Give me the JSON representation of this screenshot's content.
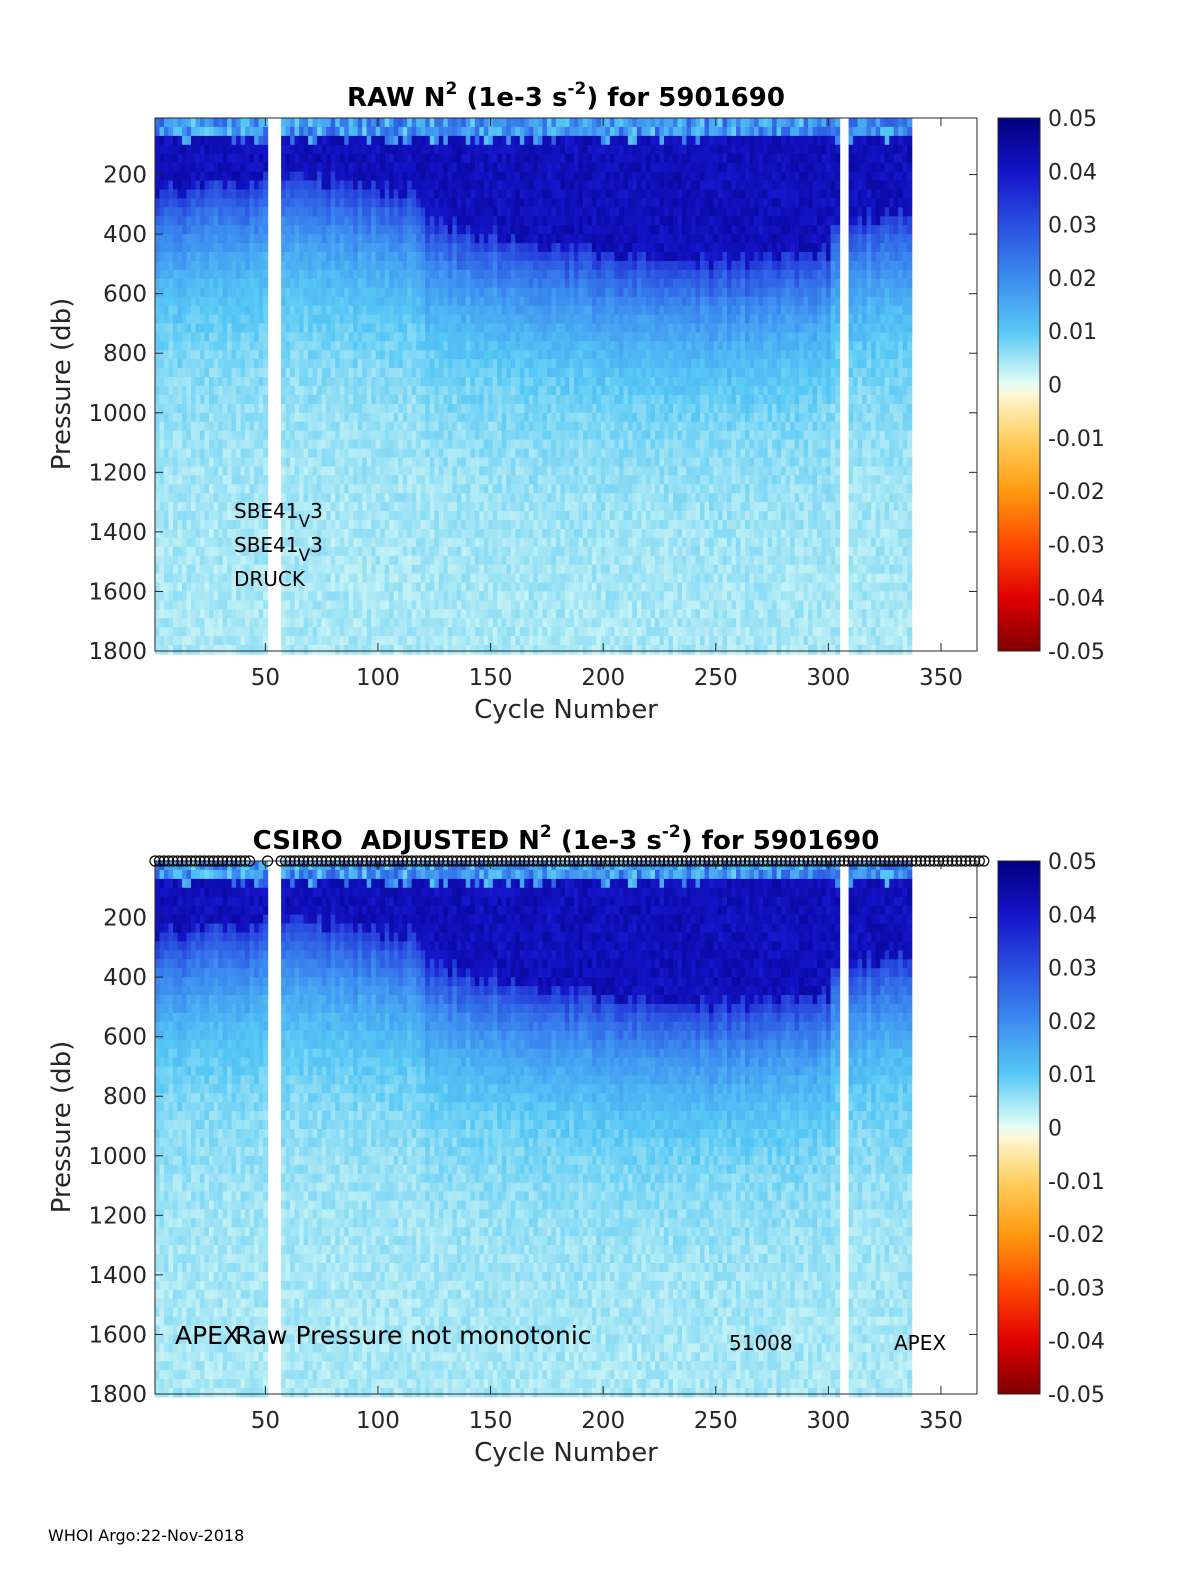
{
  "footer": "WHOI Argo:22-Nov-2018",
  "colorbar": {
    "ticks": [
      "0.05",
      "0.04",
      "0.03",
      "0.02",
      "0.01",
      "0",
      "-0.01",
      "-0.02",
      "-0.03",
      "-0.04",
      "-0.05"
    ]
  },
  "chart_data": [
    {
      "type": "heatmap",
      "title": "RAW N2 (1e-3 s-2) for 5901690",
      "title_parts": {
        "a": "RAW N",
        "sup1": "2",
        "b": " (1e-3 s",
        "sup2": "-2",
        "c": ") for 5901690"
      },
      "xlabel": "Cycle Number",
      "ylabel": "Pressure (db)",
      "xlim": [
        1,
        366
      ],
      "ylim": [
        1800,
        10
      ],
      "xticks": [
        "50",
        "100",
        "150",
        "200",
        "250",
        "300",
        "350"
      ],
      "yticks": [
        "200",
        "400",
        "600",
        "800",
        "1000",
        "1200",
        "1400",
        "1600",
        "1800"
      ],
      "clim": [
        -0.05,
        0.05
      ],
      "data_cycles": [
        1,
        336
      ],
      "gaps": [
        [
          51,
          56
        ],
        [
          305,
          307
        ]
      ],
      "annotations": [
        {
          "base": "SBE41",
          "sub": "V",
          "tail": "3"
        },
        {
          "base": "SBE41",
          "sub": "V",
          "tail": "3"
        },
        {
          "base": "DRUCK",
          "sub": "",
          "tail": ""
        }
      ]
    },
    {
      "type": "heatmap",
      "title": "CSIRO ADJUSTED N2 (1e-3 s-2) for 5901690",
      "title_parts": {
        "a": "CSIRO  ADJUSTED N",
        "sup1": "2",
        "b": " (1e-3 s",
        "sup2": "-2",
        "c": ") for 5901690"
      },
      "xlabel": "Cycle Number",
      "ylabel": "Pressure (db)",
      "xlim": [
        1,
        366
      ],
      "ylim": [
        1800,
        10
      ],
      "xticks": [
        "50",
        "100",
        "150",
        "200",
        "250",
        "300",
        "350"
      ],
      "yticks": [
        "200",
        "400",
        "600",
        "800",
        "1000",
        "1200",
        "1400",
        "1600",
        "1800"
      ],
      "clim": [
        -0.05,
        0.05
      ],
      "data_cycles": [
        1,
        336
      ],
      "gaps": [
        [
          51,
          56
        ],
        [
          305,
          307
        ]
      ],
      "annotations": [
        {
          "text": "APEX"
        },
        {
          "text": "Raw Pressure not monotonic"
        },
        {
          "text": "51008"
        },
        {
          "text": "APEX"
        }
      ]
    }
  ]
}
